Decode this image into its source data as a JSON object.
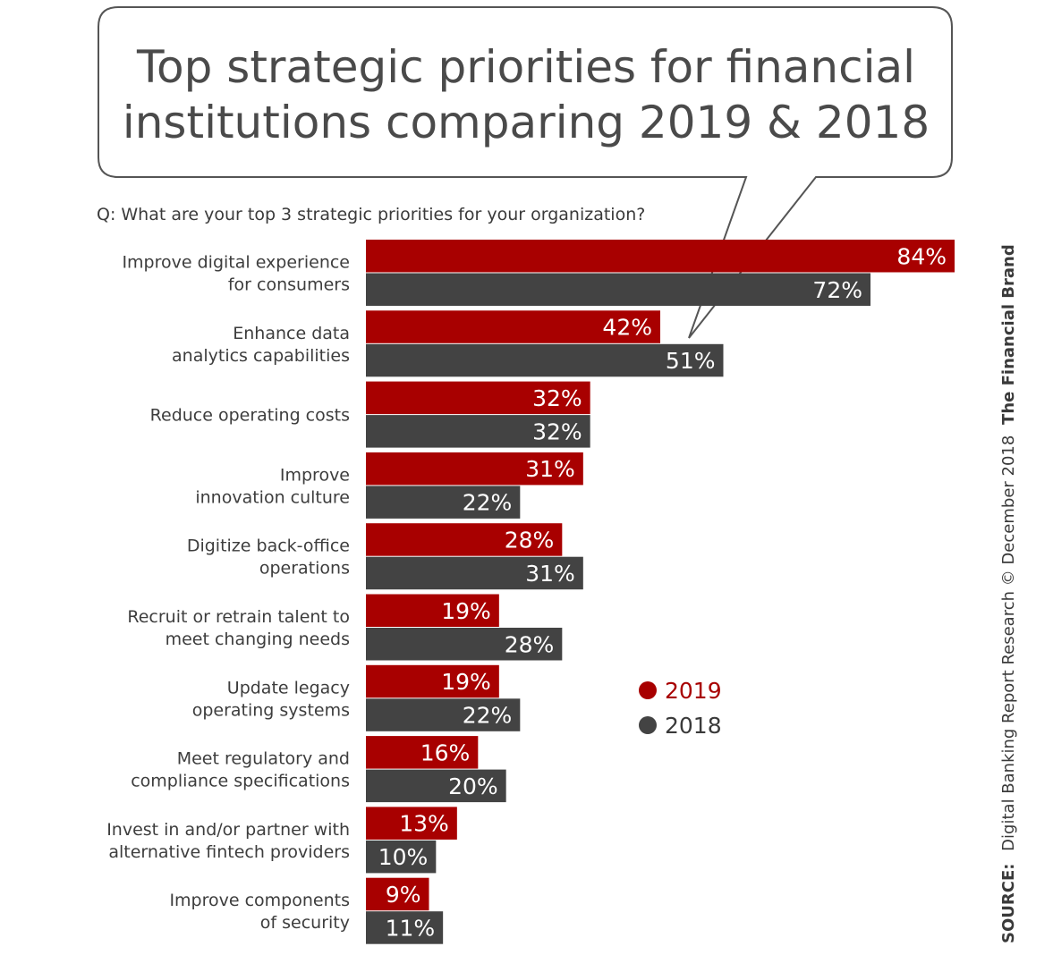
{
  "chart_data": {
    "type": "bar",
    "orientation": "horizontal",
    "title_lines": [
      "Top strategic priorities for financial",
      "institutions comparing 2019 & 2018"
    ],
    "question": "Q: What are your top 3 strategic priorities for your organization?",
    "categories": [
      [
        "Improve digital experience",
        "for consumers"
      ],
      [
        "Enhance data",
        "analytics capabilities"
      ],
      [
        "Reduce operating costs"
      ],
      [
        "Improve",
        "innovation culture"
      ],
      [
        "Digitize back-office",
        "operations"
      ],
      [
        "Recruit or retrain talent to",
        "meet changing needs"
      ],
      [
        "Update legacy",
        "operating systems"
      ],
      [
        "Meet regulatory and",
        "compliance specifications"
      ],
      [
        "Invest in and/or partner with",
        "alternative fintech providers"
      ],
      [
        "Improve components",
        "of security"
      ]
    ],
    "series": [
      {
        "name": "2019",
        "color": "#a80000",
        "values": [
          84,
          42,
          32,
          31,
          28,
          19,
          19,
          16,
          13,
          9
        ]
      },
      {
        "name": "2018",
        "color": "#434343",
        "values": [
          72,
          51,
          32,
          22,
          31,
          28,
          22,
          20,
          10,
          11
        ]
      }
    ],
    "value_suffix": "%",
    "xlim": [
      0,
      84
    ],
    "grid": false,
    "legend_position": "right-middle",
    "source": {
      "label": "SOURCE:",
      "text": "Digital Banking Report Research © December 2018",
      "brand": "The Financial Brand"
    }
  }
}
